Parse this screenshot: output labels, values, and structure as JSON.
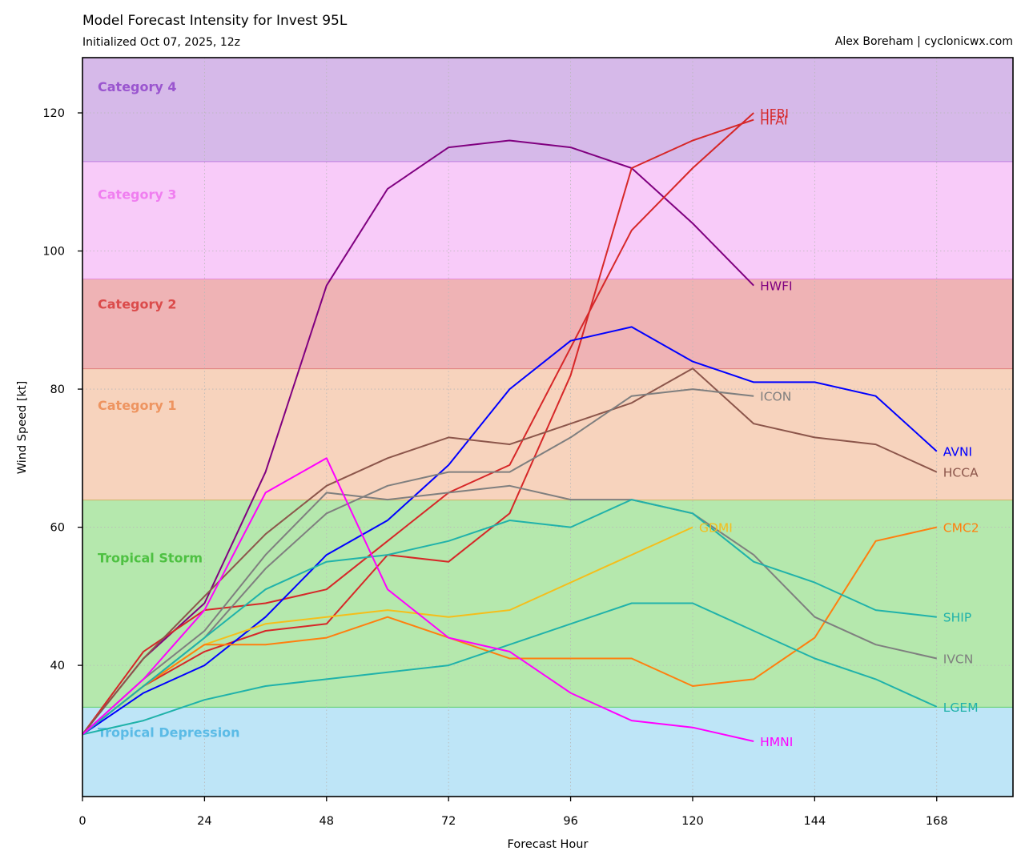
{
  "header": {
    "title": "Model Forecast Intensity for Invest 95L",
    "subtitle": "Initialized Oct 07, 2025, 12z",
    "credit": "Alex Boreham | cyclonicwx.com"
  },
  "chart_data": {
    "type": "line",
    "xlabel": "Forecast Hour",
    "ylabel": "Wind Speed [kt]",
    "xlim": [
      0,
      183
    ],
    "ylim": [
      21,
      128
    ],
    "xticks": [
      0,
      24,
      48,
      72,
      96,
      120,
      144,
      168
    ],
    "yticks": [
      40,
      60,
      80,
      100,
      120
    ],
    "grid": true,
    "bands": [
      {
        "name": "Tropical Depression",
        "from": 21,
        "to": 34,
        "fill": "#bee5f7",
        "line": "#5fc8e8",
        "label_color": "#5bbbe6"
      },
      {
        "name": "Tropical Storm",
        "from": 34,
        "to": 64,
        "fill": "#b5e8ad",
        "line": "#5fcf6a",
        "label_color": "#4ec142"
      },
      {
        "name": "Category 1",
        "from": 64,
        "to": 83,
        "fill": "#f7d3bd",
        "line": "#cfb76a",
        "label_color": "#ee9460"
      },
      {
        "name": "Category 2",
        "from": 83,
        "to": 96,
        "fill": "#efb3b5",
        "line": "#e07d78",
        "label_color": "#db4b4b"
      },
      {
        "name": "Category 3",
        "from": 96,
        "to": 113,
        "fill": "#f8cbf9",
        "line": "#e587d8",
        "label_color": "#f07ef0"
      },
      {
        "name": "Category 4",
        "from": 113,
        "to": 128,
        "fill": "#d6b9e9",
        "line": "#bf7ee0",
        "label_color": "#9a55cf"
      }
    ],
    "series": [
      {
        "name": "HWFI",
        "color": "#800080",
        "x": [
          0,
          12,
          24,
          36,
          48,
          60,
          72,
          84,
          96,
          108,
          120,
          132
        ],
        "y": [
          30,
          41,
          49,
          68,
          95,
          109,
          115,
          116,
          115,
          112,
          104,
          95
        ]
      },
      {
        "name": "HFBI",
        "color": "#d62728",
        "x": [
          0,
          12,
          24,
          36,
          48,
          60,
          72,
          84,
          96,
          108,
          120,
          132
        ],
        "y": [
          30,
          42,
          48,
          49,
          51,
          58,
          65,
          69,
          86,
          103,
          112,
          120
        ]
      },
      {
        "name": "HFAI",
        "color": "#d62728",
        "x": [
          0,
          12,
          24,
          36,
          48,
          60,
          72,
          84,
          96,
          108,
          120,
          132
        ],
        "y": [
          30,
          37,
          42,
          45,
          46,
          56,
          55,
          62,
          82,
          112,
          116,
          119
        ]
      },
      {
        "name": "AVNI",
        "color": "#0000ff",
        "x": [
          0,
          12,
          24,
          36,
          48,
          60,
          72,
          84,
          96,
          108,
          120,
          132,
          144,
          156,
          168
        ],
        "y": [
          30,
          36,
          40,
          47,
          56,
          61,
          69,
          80,
          87,
          89,
          84,
          81,
          81,
          79,
          71
        ]
      },
      {
        "name": "HCCA",
        "color": "#8c564b",
        "x": [
          0,
          12,
          24,
          36,
          48,
          60,
          72,
          84,
          96,
          108,
          120,
          132,
          144,
          156,
          168
        ],
        "y": [
          30,
          41,
          50,
          59,
          66,
          70,
          73,
          72,
          75,
          78,
          83,
          75,
          73,
          72,
          68
        ]
      },
      {
        "name": "GDMI",
        "color": "#f5be1a",
        "x": [
          0,
          12,
          24,
          36,
          48,
          60,
          72,
          84,
          96,
          108,
          120
        ],
        "y": [
          30,
          37,
          43,
          46,
          47,
          48,
          47,
          48,
          52,
          56,
          60
        ]
      },
      {
        "name": "CMC2",
        "color": "#ff7f0e",
        "x": [
          0,
          12,
          24,
          36,
          48,
          60,
          72,
          84,
          96,
          108,
          120,
          132,
          144,
          156,
          168
        ],
        "y": [
          30,
          37,
          43,
          43,
          44,
          47,
          44,
          41,
          41,
          41,
          37,
          38,
          44,
          58,
          60
        ]
      },
      {
        "name": "ICON",
        "color": "#7f7f7f",
        "x": [
          0,
          12,
          24,
          36,
          48,
          60,
          72,
          84,
          96,
          108,
          120,
          132
        ],
        "y": [
          30,
          37,
          44,
          54,
          62,
          66,
          68,
          68,
          73,
          79,
          80,
          79
        ]
      },
      {
        "name": "IVCN",
        "color": "#7f7f7f",
        "x": [
          0,
          12,
          24,
          36,
          48,
          60,
          72,
          84,
          96,
          108,
          120,
          132,
          144,
          156,
          168
        ],
        "y": [
          30,
          38,
          45,
          56,
          65,
          64,
          65,
          66,
          64,
          64,
          62,
          56,
          47,
          43,
          41
        ]
      },
      {
        "name": "SHIP",
        "color": "#20b2aa",
        "x": [
          0,
          12,
          24,
          36,
          48,
          60,
          72,
          84,
          96,
          108,
          120,
          132,
          144,
          156,
          168
        ],
        "y": [
          30,
          37,
          44,
          51,
          55,
          56,
          58,
          61,
          60,
          64,
          62,
          55,
          52,
          48,
          47
        ]
      },
      {
        "name": "LGEM",
        "color": "#20b2aa",
        "x": [
          0,
          12,
          24,
          36,
          48,
          60,
          72,
          84,
          96,
          108,
          120,
          132,
          144,
          156,
          168
        ],
        "y": [
          30,
          32,
          35,
          37,
          38,
          39,
          40,
          43,
          46,
          49,
          49,
          45,
          41,
          38,
          34
        ]
      },
      {
        "name": "HMNI",
        "color": "#ff00ff",
        "x": [
          0,
          12,
          24,
          36,
          48,
          60,
          72,
          84,
          96,
          108,
          120,
          132
        ],
        "y": [
          30,
          38,
          48,
          65,
          70,
          51,
          44,
          42,
          36,
          32,
          31,
          29
        ]
      }
    ]
  }
}
